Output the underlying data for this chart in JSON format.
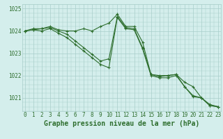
{
  "x": [
    0,
    1,
    2,
    3,
    4,
    5,
    6,
    7,
    8,
    9,
    10,
    11,
    12,
    13,
    14,
    15,
    16,
    17,
    18,
    19,
    20,
    21,
    22,
    23
  ],
  "series1": [
    1024.0,
    1024.1,
    1024.1,
    1024.2,
    1024.05,
    1024.0,
    1024.0,
    1024.1,
    1024.0,
    1024.2,
    1024.35,
    1024.75,
    1024.2,
    1024.2,
    1023.5,
    1022.05,
    1022.0,
    1022.0,
    1022.05,
    1021.7,
    1021.5,
    1021.0,
    1020.7,
    1020.6
  ],
  "series2": [
    1024.0,
    1024.05,
    1024.1,
    1024.15,
    1024.0,
    1023.85,
    1023.55,
    1023.25,
    1022.95,
    1022.65,
    1022.75,
    1024.65,
    1024.15,
    1024.1,
    1023.25,
    1022.05,
    1021.95,
    1022.0,
    1022.05,
    1021.5,
    1021.05,
    1021.0,
    1020.65,
    1020.6
  ],
  "series3": [
    1024.0,
    1024.05,
    1024.0,
    1024.1,
    1023.9,
    1023.7,
    1023.4,
    1023.1,
    1022.8,
    1022.5,
    1022.35,
    1024.6,
    1024.1,
    1024.05,
    1023.2,
    1022.0,
    1021.9,
    1021.9,
    1022.0,
    1021.5,
    1021.1,
    1021.0,
    1020.65,
    1020.6
  ],
  "line_color": "#2d6e2d",
  "bg_color": "#d4eeec",
  "grid_color": "#a8ceca",
  "xlabel": "Graphe pression niveau de la mer (hPa)",
  "ylim_min": 1020.4,
  "ylim_max": 1025.2,
  "yticks": [
    1021,
    1022,
    1023,
    1024,
    1025
  ],
  "xticks": [
    0,
    1,
    2,
    3,
    4,
    5,
    6,
    7,
    8,
    9,
    10,
    11,
    12,
    13,
    14,
    15,
    16,
    17,
    18,
    19,
    20,
    21,
    22,
    23
  ],
  "xlabel_fontsize": 7,
  "tick_fontsize": 5.5,
  "marker": "+"
}
